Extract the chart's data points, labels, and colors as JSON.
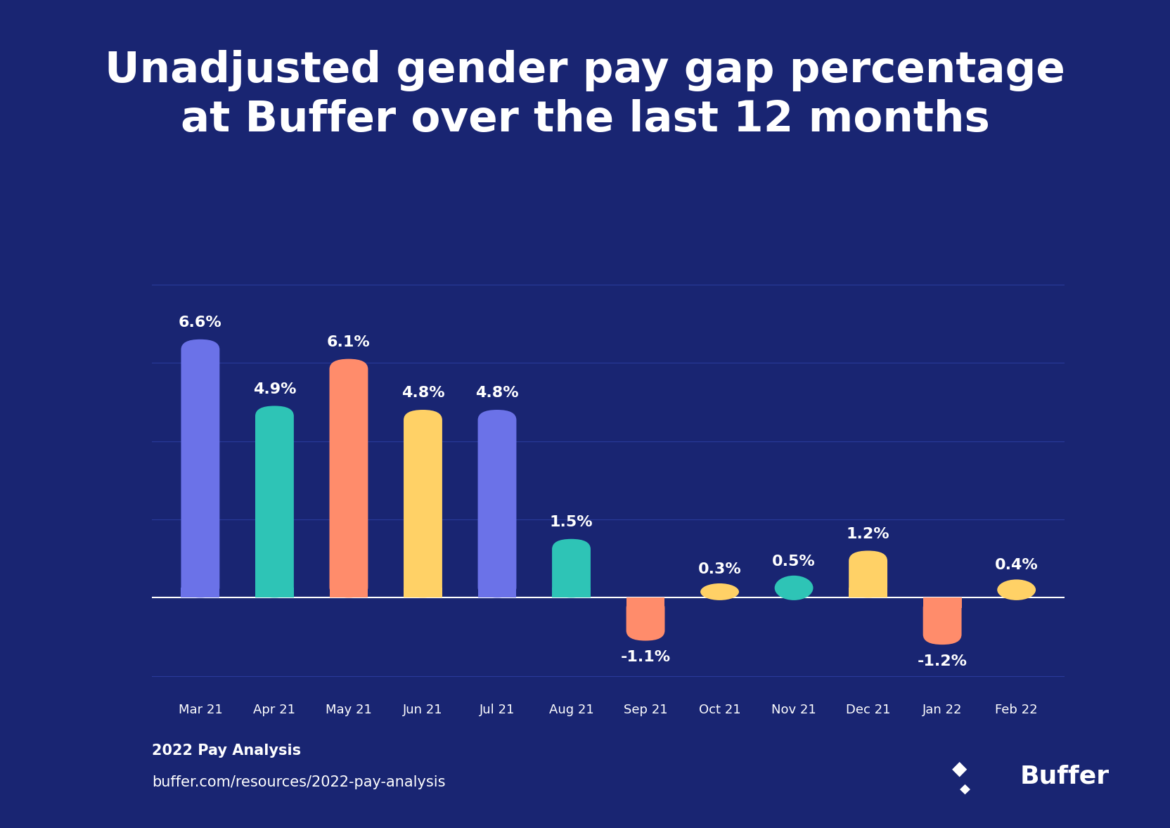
{
  "title_line1": "Unadjusted gender pay gap percentage",
  "title_line2": "at Buffer over the last 12 months",
  "categories": [
    "Mar 21",
    "Apr 21",
    "May 21",
    "Jun 21",
    "Jul 21",
    "Aug 21",
    "Sep 21",
    "Oct 21",
    "Nov 21",
    "Dec 21",
    "Jan 22",
    "Feb 22"
  ],
  "values": [
    6.6,
    4.9,
    6.1,
    4.8,
    4.8,
    1.5,
    -1.1,
    0.3,
    0.5,
    1.2,
    -1.2,
    0.4
  ],
  "bar_colors": [
    "#6B72E8",
    "#2EC4B6",
    "#FF8C6B",
    "#FFD166",
    "#6B72E8",
    "#2EC4B6",
    "#FF8C6B",
    "#FFD166",
    "#2EC4B6",
    "#FFD166",
    "#FF8C6B",
    "#FFD166"
  ],
  "background_color": "#192572",
  "text_color": "#FFFFFF",
  "grid_color": "#2A3A9A",
  "footer_bold": "2022 Pay Analysis",
  "footer_url": "buffer.com/resources/2022-pay-analysis",
  "ylim_min": -2.5,
  "ylim_max": 8.5,
  "bar_width": 0.52
}
